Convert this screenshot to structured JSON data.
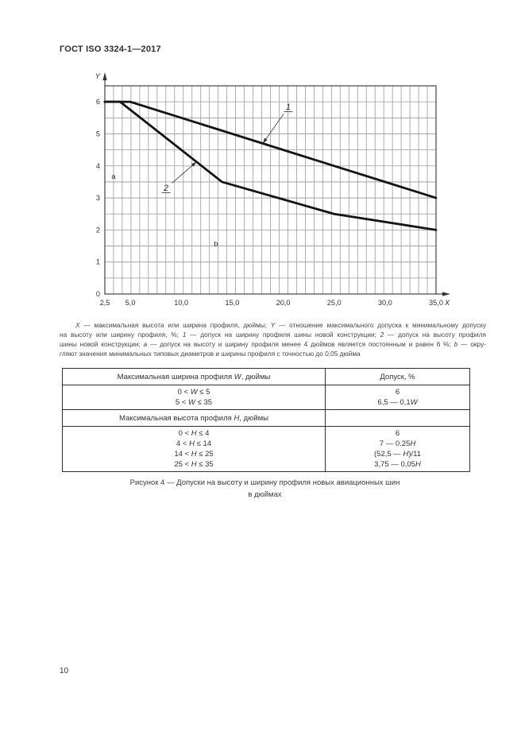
{
  "page": {
    "header": "ГОСТ ISO 3324-1—2017",
    "page_number": "10"
  },
  "chart_data": {
    "type": "line",
    "title": "",
    "xlabel": "X",
    "ylabel": "Y",
    "xlim": [
      2.5,
      35
    ],
    "ylim": [
      0,
      6.5
    ],
    "grid": true,
    "x_ticks": [
      {
        "value": 2.5,
        "label": "2,5"
      },
      {
        "value": 5,
        "label": "5,0"
      },
      {
        "value": 10,
        "label": "10,0"
      },
      {
        "value": 15,
        "label": "15,0"
      },
      {
        "value": 20,
        "label": "20,0"
      },
      {
        "value": 25,
        "label": "25,0"
      },
      {
        "value": 30,
        "label": "30,0"
      },
      {
        "value": 35,
        "label": "35,0"
      }
    ],
    "y_ticks": [
      {
        "value": 0,
        "label": "0"
      },
      {
        "value": 1,
        "label": "1"
      },
      {
        "value": 2,
        "label": "2"
      },
      {
        "value": 3,
        "label": "3"
      },
      {
        "value": 4,
        "label": "4"
      },
      {
        "value": 5,
        "label": "5"
      },
      {
        "value": 6,
        "label": "6"
      }
    ],
    "series": [
      {
        "name": "1",
        "meaning": "допуск на ширину профиля шины новой конструкции",
        "x": [
          2.5,
          5,
          35
        ],
        "y": [
          6,
          6,
          3
        ]
      },
      {
        "name": "2",
        "meaning": "допуск на высоту профиля шины новой конструкции",
        "x": [
          2.5,
          4,
          14,
          25,
          35
        ],
        "y": [
          6,
          6,
          3.5,
          2.5,
          2
        ]
      }
    ],
    "callouts": [
      {
        "text": "1",
        "label_x": 20.5,
        "label_y": 5.83,
        "tip_x": 18.0,
        "tip_y": 4.7
      },
      {
        "text": "2",
        "label_x": 8.5,
        "label_y": 3.3,
        "tip_x": 11.5,
        "tip_y": 4.13
      }
    ],
    "annotations": [
      {
        "text": "a",
        "x": 3.35,
        "y": 3.67
      },
      {
        "text": "b",
        "x": 13.4,
        "y": 1.56
      }
    ]
  },
  "legend": {
    "lines": [
      [
        {
          "t": "X",
          "i": true
        },
        {
          "t": " — максимальная высота или ширина профиля, дюймы; "
        },
        {
          "t": "Y",
          "i": true
        },
        {
          "t": " — отношение максимального допуска к минимальному допуску"
        }
      ],
      [
        {
          "t": "на высоту или ширину профиля, %; "
        },
        {
          "t": "1",
          "i": true
        },
        {
          "t": " — допуск на ширину профиля шины новой конструкции; "
        },
        {
          "t": "2",
          "i": true
        },
        {
          "t": " — допуск на высоту профиля"
        }
      ],
      [
        {
          "t": "шины новой конструкции; "
        },
        {
          "t": "а",
          "i": true
        },
        {
          "t": " — допуск на высоту и ширину профиля менее 4 дюймов является постоянным и равен 6 %; "
        },
        {
          "t": "b",
          "i": true
        },
        {
          "t": " — окру-"
        }
      ],
      [
        {
          "t": "гляют значения минимальных типовых диаметров и ширины профиля с точностью до 0,05 дюйма"
        }
      ]
    ]
  },
  "table": {
    "rows": [
      {
        "left": [
          {
            "t": "Максимальная ширина профиля "
          },
          {
            "t": "W",
            "i": true
          },
          {
            "t": ", дюймы"
          }
        ],
        "right": [
          {
            "t": "Допуск, %"
          }
        ]
      },
      {
        "left_lines": [
          [
            {
              "t": "0 < "
            },
            {
              "t": "W",
              "i": true
            },
            {
              "t": " ≤ 5"
            }
          ],
          [
            {
              "t": "5 < "
            },
            {
              "t": "W",
              "i": true
            },
            {
              "t": " ≤ 35"
            }
          ]
        ],
        "right_lines": [
          [
            {
              "t": "6"
            }
          ],
          [
            {
              "t": "6,5 — 0,1"
            },
            {
              "t": "W",
              "i": true
            }
          ]
        ]
      },
      {
        "left": [
          {
            "t": "Максимальная высота профиля "
          },
          {
            "t": "H",
            "i": true
          },
          {
            "t": ", дюймы"
          }
        ],
        "right": []
      },
      {
        "left_lines": [
          [
            {
              "t": "0 < "
            },
            {
              "t": "H",
              "i": true
            },
            {
              "t": " ≤ 4"
            }
          ],
          [
            {
              "t": "4 < "
            },
            {
              "t": "H",
              "i": true
            },
            {
              "t": " ≤ 14"
            }
          ],
          [
            {
              "t": "14 < "
            },
            {
              "t": "H",
              "i": true
            },
            {
              "t": " ≤ 25"
            }
          ],
          [
            {
              "t": "25 < "
            },
            {
              "t": "H",
              "i": true
            },
            {
              "t": " ≤ 35"
            }
          ]
        ],
        "right_lines": [
          [
            {
              "t": "6"
            }
          ],
          [
            {
              "t": "7 — 0.25"
            },
            {
              "t": "H",
              "i": true
            }
          ],
          [
            {
              "t": "(52,5 — "
            },
            {
              "t": "H",
              "i": true
            },
            {
              "t": ")/11"
            }
          ],
          [
            {
              "t": "3,75 — 0,05"
            },
            {
              "t": "H",
              "i": true
            }
          ]
        ]
      }
    ]
  },
  "figure_caption": {
    "line1": "Рисунок 4 — Допуски на высоту и ширину профиля новых авиационных шин",
    "line2": "в дюймах"
  },
  "colors": {
    "curve": "#141414",
    "grid": "#9a9a9a",
    "frame": "#444444",
    "text": "#333333"
  }
}
